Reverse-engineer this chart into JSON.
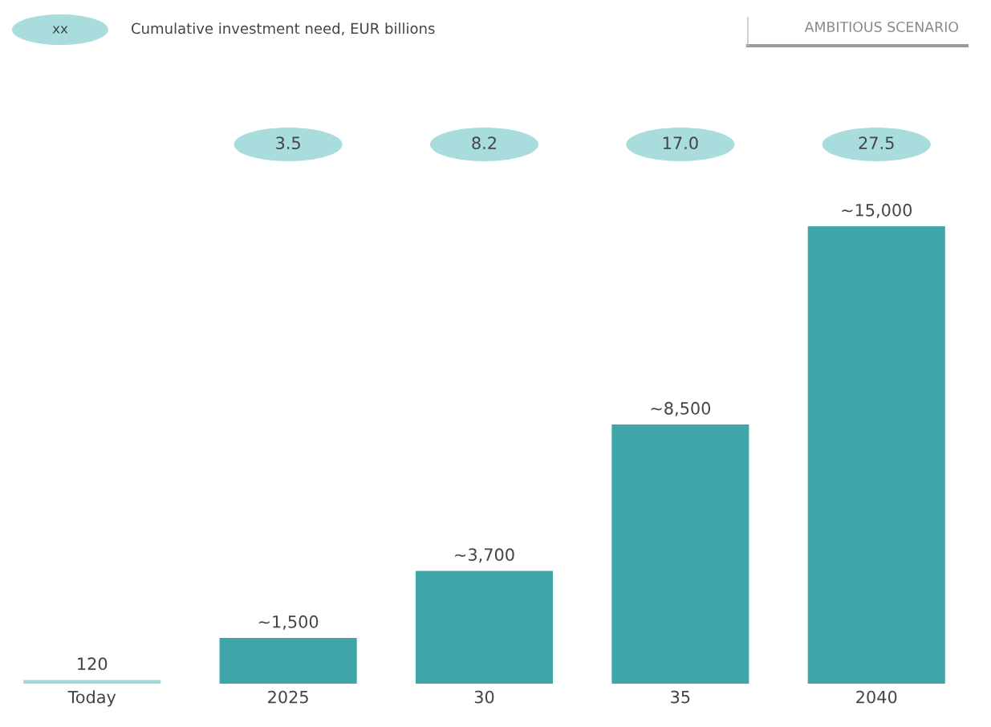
{
  "chart_data": {
    "type": "bar",
    "title": "AMBITIOUS SCENARIO",
    "categories": [
      "Today",
      "2025",
      "30",
      "35",
      "2040"
    ],
    "values": [
      120,
      1500,
      3700,
      8500,
      15000
    ],
    "colors": [
      "#9fd6d6",
      "#3fa6a9",
      "#3fa6a9",
      "#3fa6a9",
      "#3fa6a9"
    ],
    "value_labels": [
      "120",
      "~1,500",
      "~3,700",
      "~8,500",
      "~15,000"
    ],
    "annotations": [
      "xx",
      "Cumulative investment need, EUR billions",
      "3.5",
      "8.2",
      "17.0",
      "27.5"
    ],
    "grid": false,
    "legend": false
  }
}
